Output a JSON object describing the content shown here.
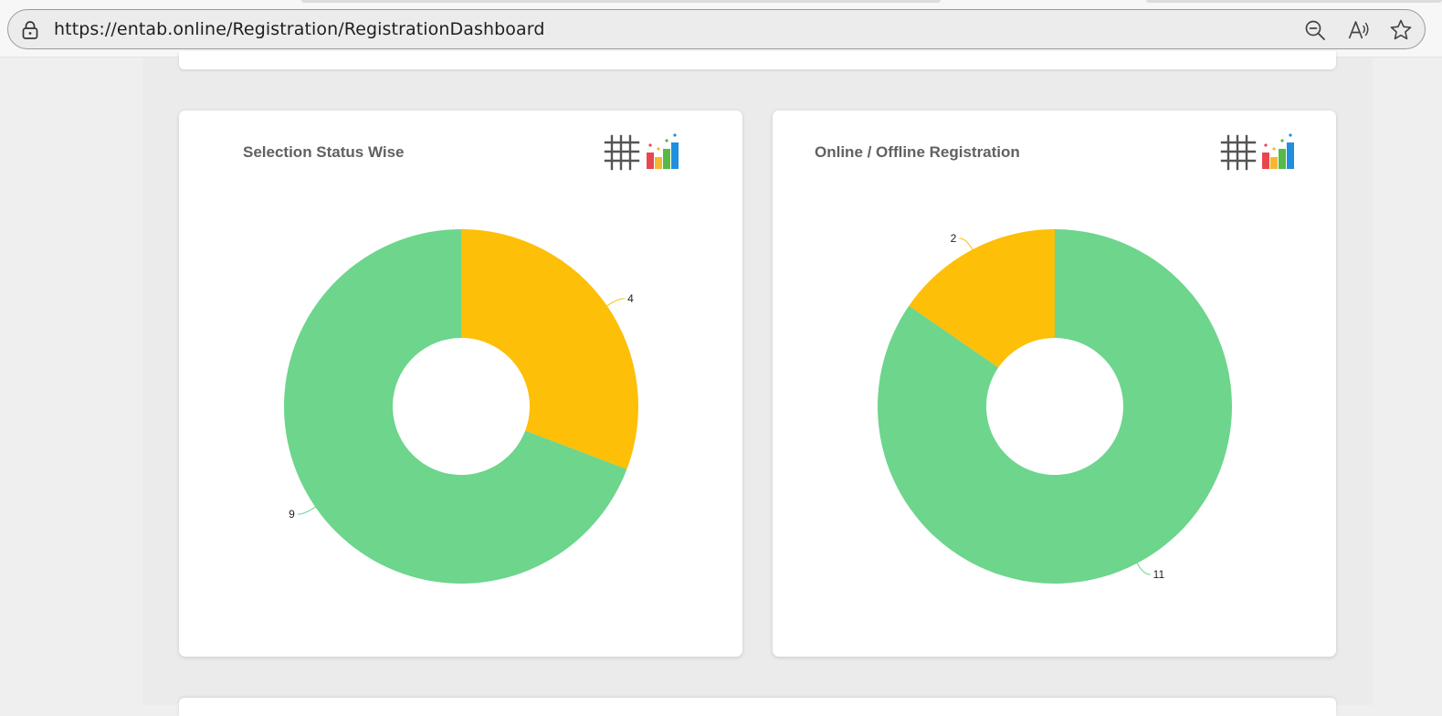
{
  "browser": {
    "url": "https://entab.online/Registration/RegistrationDashboard",
    "icons": [
      "lock-icon",
      "zoom-out-icon",
      "read-aloud-icon",
      "favorite-star-icon"
    ]
  },
  "colors": {
    "yellow": "#FDBF07",
    "green": "#6DD58C"
  },
  "cards": [
    {
      "title": "Selection Status Wise"
    },
    {
      "title": "Online / Offline Registration"
    }
  ],
  "chart_data": [
    {
      "type": "pie",
      "title": "Selection Status Wise",
      "donut": true,
      "slices": [
        {
          "value": 4,
          "label": "4",
          "color": "#FDBF07"
        },
        {
          "value": 9,
          "label": "9",
          "color": "#6DD58C"
        }
      ]
    },
    {
      "type": "pie",
      "title": "Online / Offline Registration",
      "donut": true,
      "slices": [
        {
          "value": 11,
          "label": "11",
          "color": "#6DD58C"
        },
        {
          "value": 2,
          "label": "2",
          "color": "#FDBF07"
        }
      ]
    }
  ]
}
